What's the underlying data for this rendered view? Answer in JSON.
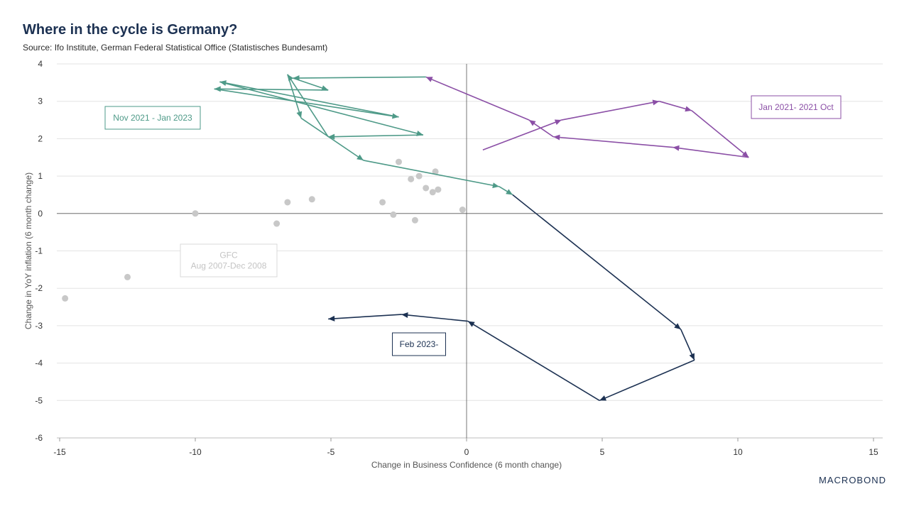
{
  "header": {
    "title": "Where in the cycle is Germany?",
    "source": "Source: Ifo Institute, German Federal Statistical Office (Statistisches Bundesamt)"
  },
  "brand": {
    "logo_text": "MACROBOND"
  },
  "chart_data": {
    "type": "scatter",
    "title": "Where in the cycle is Germany?",
    "xlabel": "Change in Business Confidence (6 month change)",
    "ylabel": "Change in YoY inflation (6 month change)",
    "xlim": [
      -15.2,
      15.3
    ],
    "ylim": [
      -6,
      4
    ],
    "xticks": [
      -15,
      -10,
      -5,
      0,
      5,
      10,
      15
    ],
    "yticks": [
      4,
      3,
      2,
      1,
      0,
      -1,
      -2,
      -3,
      -4,
      -5,
      -6
    ],
    "grid": "horizontal",
    "series": [
      {
        "name": "GFC",
        "label": "GFC\nAug 2007-Dec 2008",
        "style": "points",
        "color": "#c8c8c8",
        "points": [
          [
            -14.8,
            -2.27
          ],
          [
            -12.5,
            -1.7
          ],
          [
            -10.0,
            0.0
          ],
          [
            -7.0,
            -0.27
          ],
          [
            -6.6,
            0.3
          ],
          [
            -5.7,
            0.38
          ],
          [
            -3.1,
            0.3
          ],
          [
            -2.7,
            -0.03
          ],
          [
            -2.5,
            1.38
          ],
          [
            -2.05,
            0.92
          ],
          [
            -1.9,
            -0.18
          ],
          [
            -1.75,
            1.0
          ],
          [
            -1.5,
            0.68
          ],
          [
            -1.25,
            0.57
          ],
          [
            -1.15,
            1.12
          ],
          [
            -1.05,
            0.64
          ],
          [
            -0.15,
            0.1
          ]
        ]
      },
      {
        "name": "Jan 2021- 2021 Oct",
        "label": "Jan 2021- 2021 Oct",
        "style": "arrows",
        "color": "#8b4fa6",
        "points": [
          [
            0.6,
            1.7
          ],
          [
            3.5,
            2.5
          ],
          [
            7.1,
            3.0
          ],
          [
            8.3,
            2.75
          ],
          [
            10.4,
            1.5
          ],
          [
            7.6,
            1.77
          ],
          [
            3.2,
            2.05
          ],
          [
            2.3,
            2.5
          ],
          [
            -1.5,
            3.65
          ]
        ]
      },
      {
        "name": "Nov 2021 - Jan 2023",
        "label": "Nov 2021 - Jan 2023",
        "style": "arrows",
        "color": "#4e9a88",
        "points": [
          [
            -1.5,
            3.65
          ],
          [
            -6.4,
            3.62
          ],
          [
            -5.1,
            3.3
          ],
          [
            -9.3,
            3.33
          ],
          [
            -2.5,
            2.58
          ],
          [
            -9.1,
            3.52
          ],
          [
            -1.6,
            2.1
          ],
          [
            -5.1,
            2.05
          ],
          [
            -6.6,
            3.72
          ],
          [
            -6.1,
            2.55
          ],
          [
            -3.8,
            1.42
          ],
          [
            1.2,
            0.72
          ],
          [
            1.7,
            0.5
          ]
        ]
      },
      {
        "name": "Feb 2023-",
        "label": "Feb 2023-",
        "style": "arrows",
        "color": "#1c3152",
        "points": [
          [
            1.7,
            0.5
          ],
          [
            7.9,
            -3.1
          ],
          [
            8.4,
            -3.92
          ],
          [
            4.9,
            -5.0
          ],
          [
            0.05,
            -2.88
          ],
          [
            -2.4,
            -2.7
          ],
          [
            -5.1,
            -2.82
          ]
        ]
      }
    ]
  }
}
